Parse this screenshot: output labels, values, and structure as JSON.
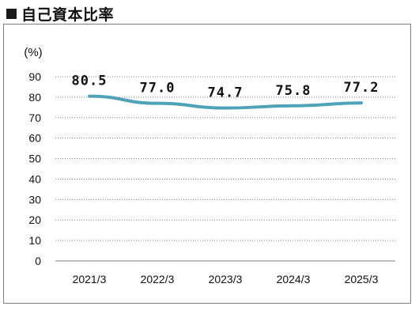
{
  "title": {
    "marker": "■",
    "text": "自己資本比率"
  },
  "colors": {
    "line": "#4fa3b8",
    "grid": "#7f7f7f",
    "axis": "#7f7f7f",
    "text": "#111111",
    "border": "#7f7f7f"
  },
  "chart_data": {
    "type": "line",
    "title": "",
    "unit_label": "(%)",
    "xlabel": "",
    "ylabel": "",
    "categories": [
      "2021/3",
      "2022/3",
      "2023/3",
      "2024/3",
      "2025/3"
    ],
    "series": [
      {
        "values": [
          80.5,
          77.0,
          74.7,
          75.8,
          77.2
        ],
        "labels": [
          "80.5",
          "77.0",
          "74.7",
          "75.8",
          "77.2"
        ]
      }
    ],
    "y_ticks": [
      0,
      10,
      20,
      30,
      40,
      50,
      60,
      70,
      80,
      90
    ],
    "ylim": [
      0,
      90
    ],
    "grid": "horizontal dotted",
    "legend": "none"
  }
}
